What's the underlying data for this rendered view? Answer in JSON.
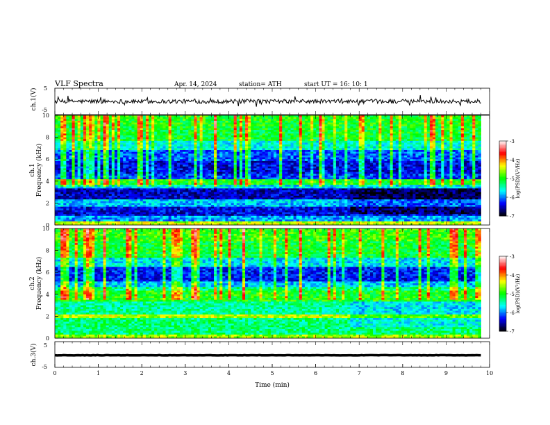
{
  "header": {
    "title": "VLF  Spectra",
    "date": "Apr. 14, 2024",
    "station": "station= ATH",
    "start": "start  UT  =    16: 10: 1"
  },
  "chart_data": [
    {
      "type": "line",
      "panel": "ch1",
      "ylabel": "ch.1(V)",
      "ylim": [
        -5,
        5
      ],
      "yticks": [
        {
          "v": 5,
          "t": "5"
        },
        {
          "v": -5,
          "t": "-5"
        }
      ],
      "xlim": [
        0,
        10
      ],
      "series_color": "#000000",
      "baseline": 0.0,
      "series_description_values": {
        "typical_amplitude": 1.0,
        "spike_amplitude": 2.5
      }
    },
    {
      "type": "heatmap",
      "panel": "ch1-spectrogram",
      "ylabel_top": "ch.1",
      "ylabel": "Frequency (kHz)",
      "ylim": [
        0,
        10
      ],
      "yticks": [
        "0",
        "2",
        "4",
        "6",
        "8",
        "10"
      ],
      "xlim": [
        0,
        9.8
      ],
      "bands": [
        {
          "f0": 9.0,
          "f1": 10.0,
          "level": -5.0
        },
        {
          "f0": 7.6,
          "f1": 9.0,
          "level": -5.1
        },
        {
          "f0": 6.8,
          "f1": 7.6,
          "level": -5.6
        },
        {
          "f0": 5.8,
          "f1": 6.8,
          "level": -6.1
        },
        {
          "f0": 4.6,
          "f1": 5.8,
          "level": -6.4
        },
        {
          "f0": 4.2,
          "f1": 4.6,
          "level": -6.2
        },
        {
          "f0": 3.7,
          "f1": 4.2,
          "level": -5.0
        },
        {
          "f0": 3.3,
          "f1": 3.7,
          "level": -5.7
        },
        {
          "f0": 2.4,
          "f1": 3.3,
          "level": -6.5
        },
        {
          "f0": 1.6,
          "f1": 2.4,
          "level": -5.8
        },
        {
          "f0": 0.9,
          "f1": 1.6,
          "level": -6.4
        },
        {
          "f0": 0.3,
          "f1": 0.9,
          "level": -5.9
        },
        {
          "f0": 0.0,
          "f1": 0.3,
          "level": -4.5
        }
      ],
      "change_time": 6.8
    },
    {
      "type": "heatmap",
      "panel": "ch2-spectrogram",
      "ylabel_top": "ch.2",
      "ylabel": "Frequency (kHz)",
      "ylim": [
        0,
        10
      ],
      "yticks": [
        "0",
        "2",
        "4",
        "6",
        "8",
        "10"
      ],
      "xlim": [
        0,
        9.8
      ],
      "bands": [
        {
          "f0": 8.8,
          "f1": 10.0,
          "level": -4.9
        },
        {
          "f0": 7.4,
          "f1": 8.8,
          "level": -5.1
        },
        {
          "f0": 6.5,
          "f1": 7.4,
          "level": -5.7
        },
        {
          "f0": 5.1,
          "f1": 6.5,
          "level": -6.3
        },
        {
          "f0": 4.7,
          "f1": 5.1,
          "level": -5.8
        },
        {
          "f0": 4.3,
          "f1": 4.7,
          "level": -5.3
        },
        {
          "f0": 3.4,
          "f1": 4.3,
          "level": -5.0
        },
        {
          "f0": 2.2,
          "f1": 3.4,
          "level": -5.4
        },
        {
          "f0": 1.8,
          "f1": 2.2,
          "level": -4.5
        },
        {
          "f0": 0.3,
          "f1": 1.8,
          "level": -5.3
        },
        {
          "f0": 0.0,
          "f1": 0.3,
          "level": -4.6
        }
      ],
      "change_time": 6.8
    },
    {
      "type": "line",
      "panel": "ch3",
      "ylabel": "ch.3(V)",
      "ylim": [
        -5,
        5
      ],
      "yticks": [
        {
          "v": 5,
          "t": "5"
        },
        {
          "v": -5,
          "t": "-5"
        }
      ],
      "xlim": [
        0,
        10
      ],
      "xlabel": "Time  (min)",
      "xticks": [
        "0",
        "1",
        "2",
        "3",
        "4",
        "5",
        "6",
        "7",
        "8",
        "9",
        "10"
      ],
      "series_color": "#000000",
      "baseline": -0.3
    }
  ],
  "colorbar": {
    "label": "log(PSD)(V²/Hz)",
    "ticks": [
      "-3",
      "-4",
      "-5",
      "-6",
      "-7"
    ],
    "range": [
      -7,
      -3
    ],
    "colors": [
      "#000000",
      "#0000ff",
      "#00ffff",
      "#00ff00",
      "#ffff00",
      "#ff0000",
      "#ffffff"
    ]
  }
}
